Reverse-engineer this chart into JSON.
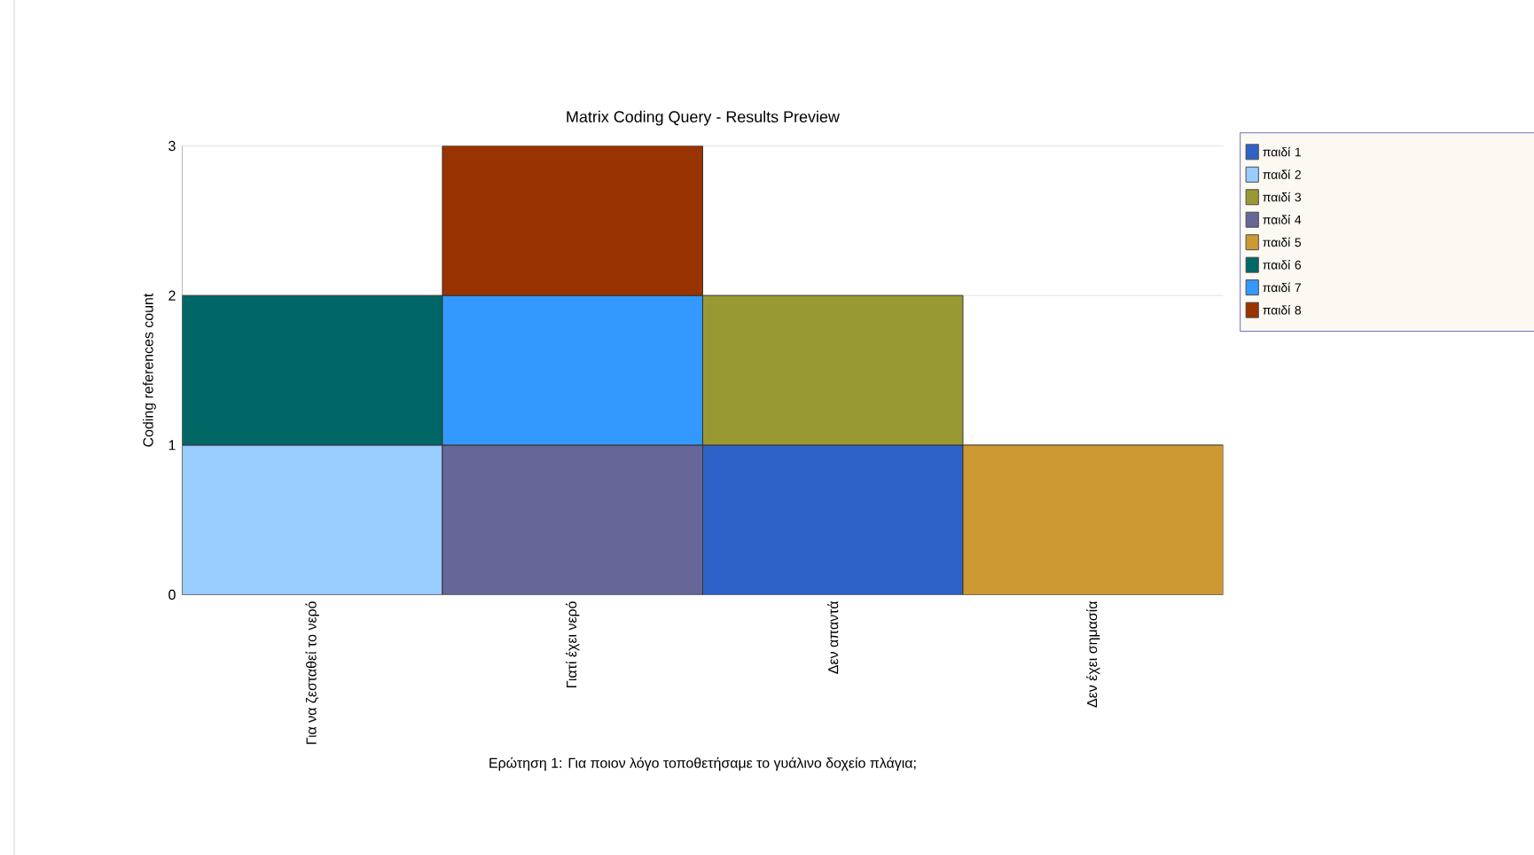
{
  "chart_data": {
    "type": "bar",
    "stacked": true,
    "title": "Matrix Coding Query - Results Preview",
    "xlabel": "Ερώτηση 1: Για ποιον λόγο τοποθετήσαμε το γυάλινο δοχείο πλάγια;",
    "ylabel": "Coding references count",
    "categories": [
      "Για να ζεσταθεί το νερό",
      "Γιατί έχει νερό",
      "Δεν απαντά",
      "Δεν έχει σημασία"
    ],
    "series": [
      {
        "name": "παιδί 1",
        "color": "#2f62c8",
        "values": [
          null,
          null,
          1,
          null
        ]
      },
      {
        "name": "παιδί 2",
        "color": "#99ccff",
        "values": [
          1,
          null,
          null,
          null
        ]
      },
      {
        "name": "παιδί 3",
        "color": "#999933",
        "values": [
          null,
          null,
          1,
          null
        ]
      },
      {
        "name": "παιδί 4",
        "color": "#666699",
        "values": [
          null,
          1,
          null,
          null
        ]
      },
      {
        "name": "παιδί 5",
        "color": "#cc9933",
        "values": [
          null,
          null,
          null,
          1
        ]
      },
      {
        "name": "παιδί 6",
        "color": "#006666",
        "values": [
          1,
          null,
          null,
          null
        ]
      },
      {
        "name": "παιδί 7",
        "color": "#3399ff",
        "values": [
          null,
          1,
          null,
          null
        ]
      },
      {
        "name": "παιδί 8",
        "color": "#993300",
        "values": [
          null,
          1,
          null,
          null
        ]
      }
    ],
    "ylim": [
      0,
      3
    ],
    "yticks": [
      0,
      1,
      2,
      3
    ],
    "grid": "y",
    "legend": "right"
  }
}
